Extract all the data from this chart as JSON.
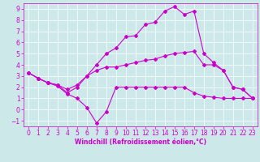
{
  "title": "",
  "xlabel": "Windchill (Refroidissement éolien,°C)",
  "bg_color": "#cce8e8",
  "line_color": "#cc00cc",
  "xlim": [
    -0.5,
    23.5
  ],
  "ylim": [
    -1.5,
    9.5
  ],
  "xticks": [
    0,
    1,
    2,
    3,
    4,
    5,
    6,
    7,
    8,
    9,
    10,
    11,
    12,
    13,
    14,
    15,
    16,
    17,
    18,
    19,
    20,
    21,
    22,
    23
  ],
  "yticks": [
    -1,
    0,
    1,
    2,
    3,
    4,
    5,
    6,
    7,
    8,
    9
  ],
  "line1_x": [
    0,
    1,
    2,
    3,
    4,
    5,
    6,
    7,
    8,
    9,
    10,
    11,
    12,
    13,
    14,
    15,
    16,
    17,
    18,
    19,
    20,
    21,
    22,
    23
  ],
  "line1_y": [
    3.3,
    2.8,
    2.4,
    2.1,
    1.4,
    1.0,
    0.2,
    -1.2,
    -0.2,
    2.0,
    2.0,
    2.0,
    2.0,
    2.0,
    2.0,
    2.0,
    2.0,
    1.5,
    1.2,
    1.1,
    1.0,
    1.0,
    1.0,
    1.0
  ],
  "line2_x": [
    0,
    1,
    2,
    3,
    4,
    5,
    6,
    7,
    8,
    9,
    10,
    11,
    12,
    13,
    14,
    15,
    16,
    17,
    18,
    19,
    20,
    21,
    22,
    23
  ],
  "line2_y": [
    3.3,
    2.8,
    2.4,
    2.2,
    1.5,
    2.0,
    3.0,
    4.0,
    5.0,
    5.5,
    6.5,
    6.6,
    7.6,
    7.8,
    8.8,
    9.2,
    8.5,
    8.8,
    5.0,
    4.2,
    3.5,
    2.0,
    1.8,
    1.0
  ],
  "line3_x": [
    0,
    1,
    2,
    3,
    4,
    5,
    6,
    7,
    8,
    9,
    10,
    11,
    12,
    13,
    14,
    15,
    16,
    17,
    18,
    19,
    20,
    21,
    22,
    23
  ],
  "line3_y": [
    3.3,
    2.8,
    2.4,
    2.2,
    1.8,
    2.2,
    3.0,
    3.5,
    3.8,
    3.8,
    4.0,
    4.2,
    4.4,
    4.5,
    4.8,
    5.0,
    5.1,
    5.2,
    4.0,
    4.0,
    3.5,
    2.0,
    1.8,
    1.0
  ],
  "tick_fontsize": 5.5,
  "xlabel_fontsize": 5.5
}
